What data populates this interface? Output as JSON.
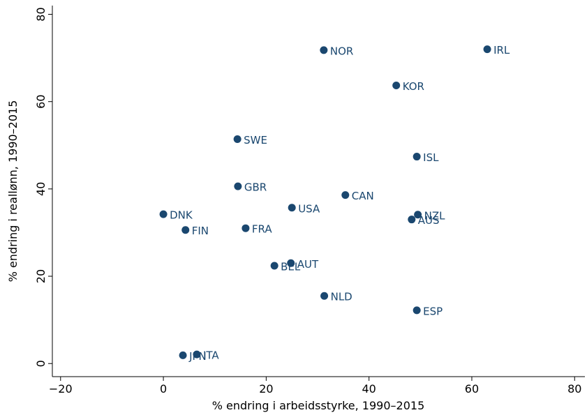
{
  "chart_data": {
    "type": "scatter",
    "xlabel": "% endring i arbeidsstyrke, 1990–2015",
    "ylabel": "% endring i reallønn, 1990–2015",
    "color": "#1a476f",
    "labels": [
      "NOR",
      "IRL",
      "KOR",
      "SWE",
      "ISL",
      "GBR",
      "CAN",
      "USA",
      "DNK",
      "NZL",
      "AUS",
      "FIN",
      "FRA",
      "AUT",
      "BEL",
      "NLD",
      "ESP",
      "JPN",
      "ITA"
    ],
    "x": [
      31.2,
      63.0,
      45.3,
      14.4,
      49.3,
      14.5,
      35.4,
      25.0,
      0,
      49.5,
      48.3,
      4.3,
      16.0,
      24.8,
      21.6,
      31.3,
      49.3,
      3.8,
      6.5
    ],
    "y": [
      71.8,
      72.0,
      63.7,
      51.4,
      47.4,
      40.6,
      38.6,
      35.7,
      34.2,
      34.1,
      33.0,
      30.6,
      31.0,
      23.0,
      22.4,
      15.5,
      12.2,
      1.9,
      2.1
    ],
    "xlim": [
      -21.6,
      82
    ],
    "ylim": [
      -3,
      82
    ],
    "xticks": [
      {
        "value": -20,
        "label": "−20"
      },
      0,
      20,
      40,
      60,
      80
    ],
    "yticks": [
      0,
      20,
      40,
      60,
      80
    ]
  }
}
